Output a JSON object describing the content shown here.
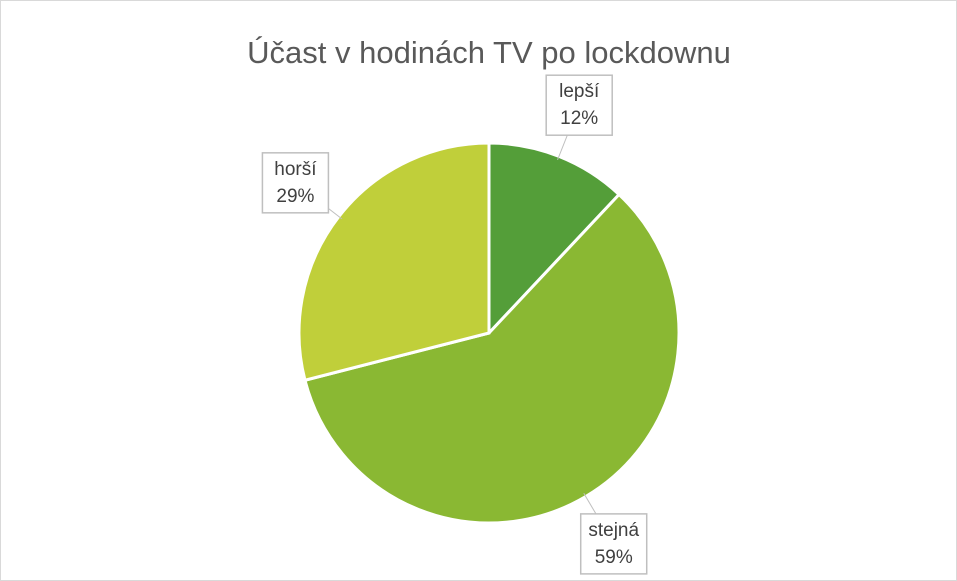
{
  "chart_data": {
    "type": "pie",
    "title": "Účast v hodinách TV po lockdownu",
    "categories": [
      "lepší",
      "stejná",
      "horší"
    ],
    "values": [
      12,
      59,
      29
    ],
    "value_labels": [
      "12%",
      "59%",
      "29%"
    ],
    "colors": [
      "#549e39",
      "#8ab833",
      "#c0cf3a"
    ]
  }
}
